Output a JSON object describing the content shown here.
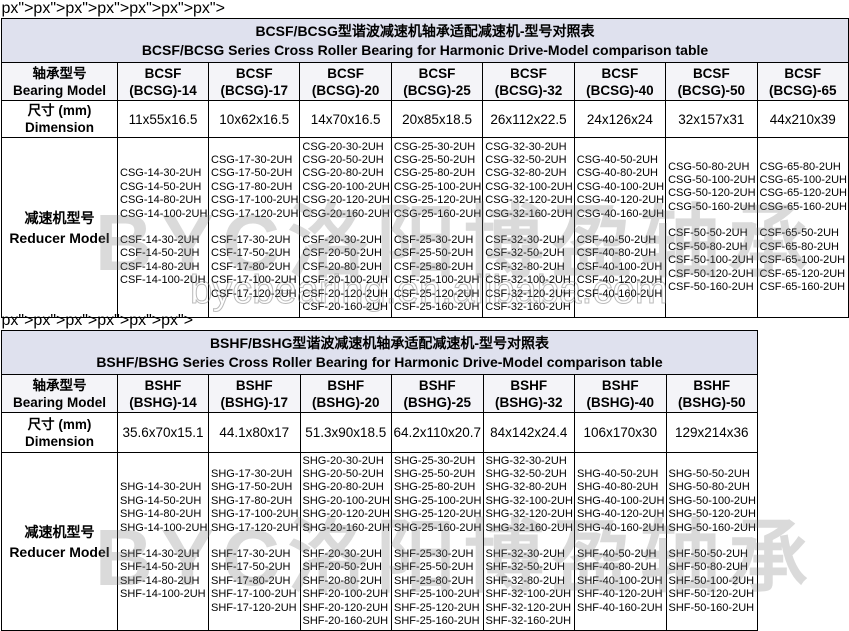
{
  "tables": [
    {
      "title_cn": "BCSF/BCSG型谐波减速机轴承适配减速机-型号对照表",
      "title_en": "BCSF/BCSG Series Cross Roller Bearing for Harmonic Drive-Model comparison table",
      "model_label_cn": "轴承型号",
      "model_label_en": "Bearing Model",
      "dim_label_cn": "尺寸 (mm)",
      "dim_label_en": "Dimension",
      "reducer_label_cn": "减速机型号",
      "reducer_label_en": "Reducer Model",
      "columns": [
        {
          "l1": "BCSF",
          "l2": "(BCSG)-14",
          "dim": "11x55x16.5",
          "g": [
            "CSG-14-30-2UH",
            "CSG-14-50-2UH",
            "CSG-14-80-2UH",
            "CSG-14-100-2UH"
          ],
          "f": [
            "CSF-14-30-2UH",
            "CSF-14-50-2UH",
            "CSF-14-80-2UH",
            "CSF-14-100-2UH"
          ]
        },
        {
          "l1": "BCSF",
          "l2": "(BCSG)-17",
          "dim": "10x62x16.5",
          "g": [
            "CSG-17-30-2UH",
            "CSG-17-50-2UH",
            "CSG-17-80-2UH",
            "CSG-17-100-2UH",
            "CSG-17-120-2UH"
          ],
          "f": [
            "CSF-17-30-2UH",
            "CSF-17-50-2UH",
            "CSF-17-80-2UH",
            "CSF-17-100-2UH",
            "CSF-17-120-2UH"
          ]
        },
        {
          "l1": "BCSF",
          "l2": "(BCSG)-20",
          "dim": "14x70x16.5",
          "g": [
            "CSG-20-30-2UH",
            "CSG-20-50-2UH",
            "CSG-20-80-2UH",
            "CSG-20-100-2UH",
            "CSG-20-120-2UH",
            "CSG-20-160-2UH"
          ],
          "f": [
            "CSF-20-30-2UH",
            "CSF-20-50-2UH",
            "CSF-20-80-2UH",
            "CSF-20-100-2UH",
            "CSF-20-120-2UH",
            "CSF-20-160-2UH"
          ]
        },
        {
          "l1": "BCSF",
          "l2": "(BCSG)-25",
          "dim": "20x85x18.5",
          "g": [
            "CSG-25-30-2UH",
            "CSG-25-50-2UH",
            "CSG-25-80-2UH",
            "CSG-25-100-2UH",
            "CSG-25-120-2UH",
            "CSG-25-160-2UH"
          ],
          "f": [
            "CSF-25-30-2UH",
            "CSF-25-50-2UH",
            "CSF-25-80-2UH",
            "CSF-25-100-2UH",
            "CSF-25-120-2UH",
            "CSF-25-160-2UH"
          ]
        },
        {
          "l1": "BCSF",
          "l2": "(BCSG)-32",
          "dim": "26x112x22.5",
          "g": [
            "CSG-32-30-2UH",
            "CSG-32-50-2UH",
            "CSG-32-80-2UH",
            "CSG-32-100-2UH",
            "CSG-32-120-2UH",
            "CSG-32-160-2UH"
          ],
          "f": [
            "CSF-32-30-2UH",
            "CSF-32-50-2UH",
            "CSF-32-80-2UH",
            "CSF-32-100-2UH",
            "CSF-32-120-2UH",
            "CSF-32-160-2UH"
          ]
        },
        {
          "l1": "BCSF",
          "l2": "(BCSG)-40",
          "dim": "24x126x24",
          "g": [
            "CSG-40-50-2UH",
            "CSG-40-80-2UH",
            "CSG-40-100-2UH",
            "CSG-40-120-2UH",
            "CSG-40-160-2UH"
          ],
          "f": [
            "CSF-40-50-2UH",
            "CSF-40-80-2UH",
            "CSF-40-100-2UH",
            "CSF-40-120-2UH",
            "CSF-40-160-2UH"
          ]
        },
        {
          "l1": "BCSF",
          "l2": "(BCSG)-50",
          "dim": "32x157x31",
          "g": [
            "CSG-50-80-2UH",
            "CSG-50-100-2UH",
            "CSG-50-120-2UH",
            "CSG-50-160-2UH"
          ],
          "f": [
            "CSF-50-50-2UH",
            "CSF-50-80-2UH",
            "CSF-50-100-2UH",
            "CSF-50-120-2UH",
            "CSF-50-160-2UH"
          ]
        },
        {
          "l1": "BCSF",
          "l2": "(BCSG)-65",
          "dim": "44x210x39",
          "g": [
            "CSG-65-80-2UH",
            "CSG-65-100-2UH",
            "CSG-65-120-2UH",
            "CSG-65-160-2UH"
          ],
          "f": [
            "CSF-65-50-2UH",
            "CSF-65-80-2UH",
            "CSF-65-100-2UH",
            "CSF-65-120-2UH",
            "CSF-65-160-2UH"
          ]
        }
      ]
    },
    {
      "title_cn": "BSHF/BSHG型谐波减速机轴承适配减速机-型号对照表",
      "title_en": "BSHF/BSHG Series Cross Roller Bearing for Harmonic Drive-Model comparison table",
      "model_label_cn": "轴承型号",
      "model_label_en": "Bearing Model",
      "dim_label_cn": "尺寸 (mm)",
      "dim_label_en": "Dimension",
      "reducer_label_cn": "减速机型号",
      "reducer_label_en": "Reducer Model",
      "columns": [
        {
          "l1": "BSHF",
          "l2": "(BSHG)-14",
          "dim": "35.6x70x15.1",
          "g": [
            "SHG-14-30-2UH",
            "SHG-14-50-2UH",
            "SHG-14-80-2UH",
            "SHG-14-100-2UH"
          ],
          "f": [
            "SHF-14-30-2UH",
            "SHF-14-50-2UH",
            "SHF-14-80-2UH",
            "SHF-14-100-2UH"
          ]
        },
        {
          "l1": "BSHF",
          "l2": "(BSHG)-17",
          "dim": "44.1x80x17",
          "g": [
            "SHG-17-30-2UH",
            "SHG-17-50-2UH",
            "SHG-17-80-2UH",
            "SHG-17-100-2UH",
            "SHG-17-120-2UH"
          ],
          "f": [
            "SHF-17-30-2UH",
            "SHF-17-50-2UH",
            "SHF-17-80-2UH",
            "SHF-17-100-2UH",
            "SHF-17-120-2UH"
          ]
        },
        {
          "l1": "BSHF",
          "l2": "(BSHG)-20",
          "dim": "51.3x90x18.5",
          "g": [
            "SHG-20-30-2UH",
            "SHG-20-50-2UH",
            "SHG-20-80-2UH",
            "SHG-20-100-2UH",
            "SHG-20-120-2UH",
            "SHG-20-160-2UH"
          ],
          "f": [
            "SHF-20-30-2UH",
            "SHF-20-50-2UH",
            "SHF-20-80-2UH",
            "SHF-20-100-2UH",
            "SHF-20-120-2UH",
            "SHF-20-160-2UH"
          ]
        },
        {
          "l1": "BSHF",
          "l2": "(BSHG)-25",
          "dim": "64.2x110x20.7",
          "g": [
            "SHG-25-30-2UH",
            "SHG-25-50-2UH",
            "SHG-25-80-2UH",
            "SHG-25-100-2UH",
            "SHG-25-120-2UH",
            "SHG-25-160-2UH"
          ],
          "f": [
            "SHF-25-30-2UH",
            "SHF-25-50-2UH",
            "SHF-25-80-2UH",
            "SHF-25-100-2UH",
            "SHF-25-120-2UH",
            "SHF-25-160-2UH"
          ]
        },
        {
          "l1": "BSHF",
          "l2": "(BSHG)-32",
          "dim": "84x142x24.4",
          "g": [
            "SHG-32-30-2UH",
            "SHG-32-50-2UH",
            "SHG-32-80-2UH",
            "SHG-32-100-2UH",
            "SHG-32-120-2UH",
            "SHG-32-160-2UH"
          ],
          "f": [
            "SHF-32-30-2UH",
            "SHF-32-50-2UH",
            "SHF-32-80-2UH",
            "SHF-32-100-2UH",
            "SHF-32-120-2UH",
            "SHF-32-160-2UH"
          ]
        },
        {
          "l1": "BSHF",
          "l2": "(BSHG)-40",
          "dim": "106x170x30",
          "g": [
            "SHG-40-50-2UH",
            "SHG-40-80-2UH",
            "SHG-40-100-2UH",
            "SHG-40-120-2UH",
            "SHG-40-160-2UH"
          ],
          "f": [
            "SHF-40-50-2UH",
            "SHF-40-80-2UH",
            "SHF-40-100-2UH",
            "SHF-40-120-2UH",
            "SHF-40-160-2UH"
          ]
        },
        {
          "l1": "BSHF",
          "l2": "(BSHG)-50",
          "dim": "129x214x36",
          "g": [
            "SHG-50-50-2UH",
            "SHG-50-80-2UH",
            "SHG-50-100-2UH",
            "SHG-50-120-2UH",
            "SHG-50-160-2UH"
          ],
          "f": [
            "SHF-50-50-2UH",
            "SHF-50-80-2UH",
            "SHF-50-100-2UH",
            "SHF-50-120-2UH",
            "SHF-50-160-2UH"
          ]
        }
      ]
    }
  ],
  "watermark": {
    "logo": "BYC洛阳博盈轴承",
    "site": "bycbearing.en.alibaba.com"
  }
}
